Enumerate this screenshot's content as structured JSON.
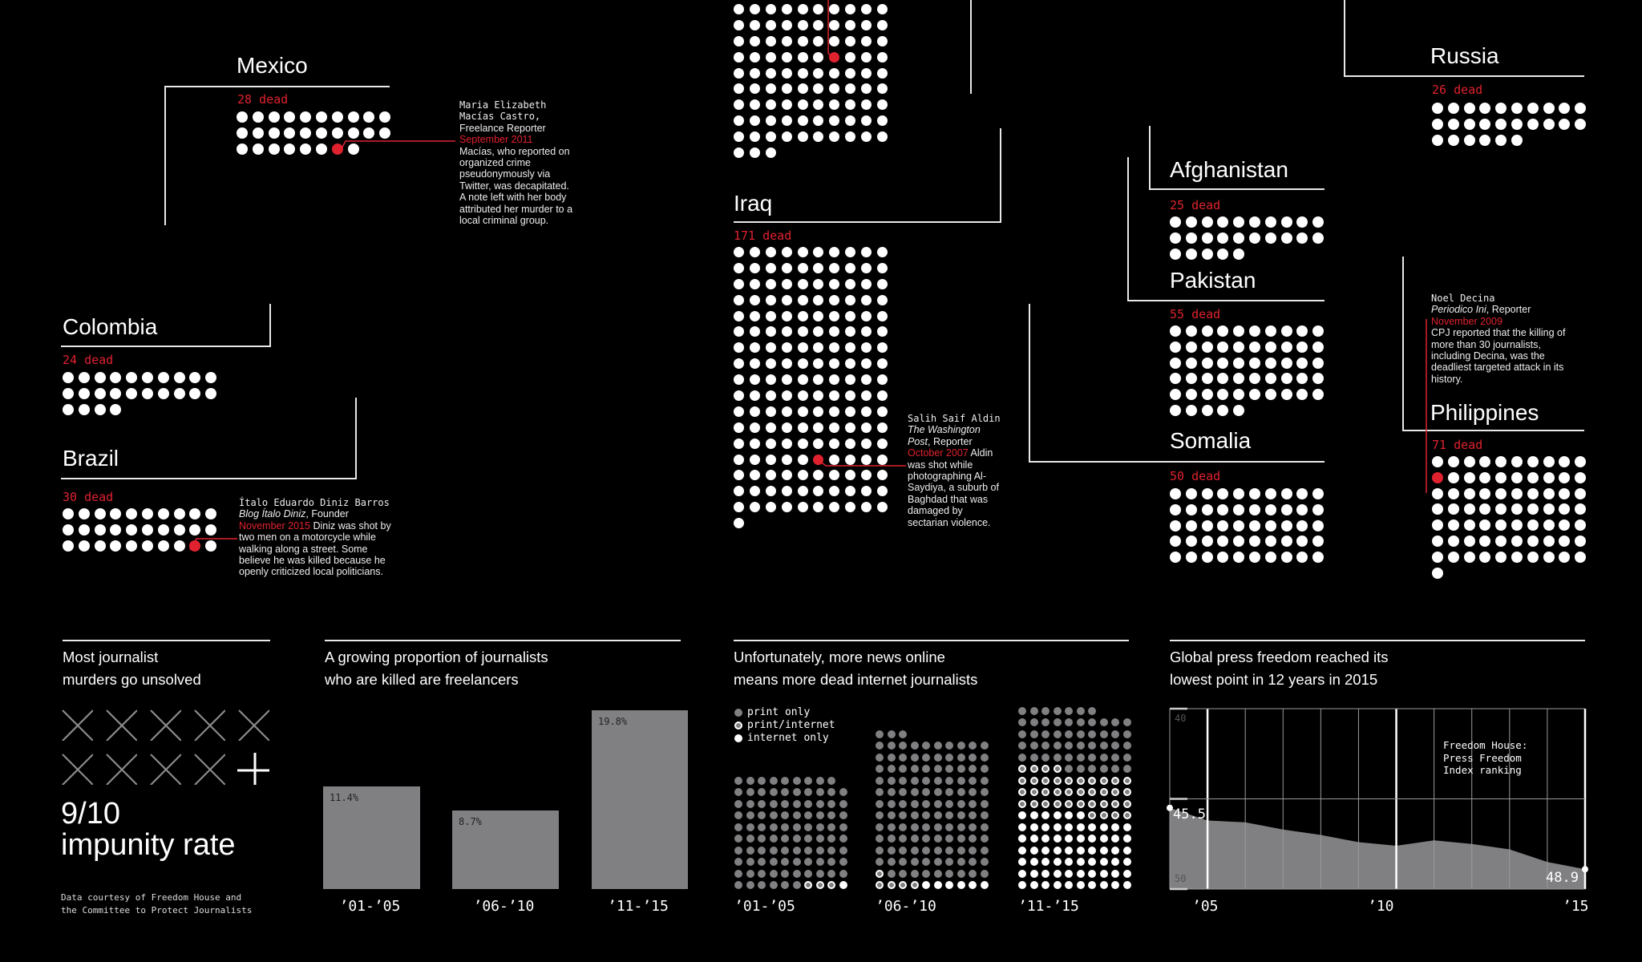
{
  "colors": {
    "accent_red": "#e0222f",
    "bar_gray": "#808083",
    "background": "#000000"
  },
  "countries": [
    {
      "id": "mexico",
      "name": "Mexico",
      "dead_label": "28 dead",
      "count": 28,
      "highlight_index": 26
    },
    {
      "id": "colombia",
      "name": "Colombia",
      "dead_label": "24 dead",
      "count": 24,
      "highlight_index": -1
    },
    {
      "id": "brazil",
      "name": "Brazil",
      "dead_label": "30 dead",
      "count": 30,
      "highlight_index": 28
    },
    {
      "id": "iraq",
      "name": "Iraq",
      "dead_label": "171 dead",
      "count": 171,
      "highlight_index": 135
    },
    {
      "id": "afghanistan",
      "name": "Afghanistan",
      "dead_label": "25 dead",
      "count": 25,
      "highlight_index": -1
    },
    {
      "id": "pakistan",
      "name": "Pakistan",
      "dead_label": "55 dead",
      "count": 55,
      "highlight_index": -1
    },
    {
      "id": "somalia",
      "name": "Somalia",
      "dead_label": "50 dead",
      "count": 50,
      "highlight_index": -1
    },
    {
      "id": "russia",
      "name": "Russia",
      "dead_label": "26 dead",
      "count": 26,
      "highlight_index": -1
    },
    {
      "id": "philippines",
      "name": "Philippines",
      "dead_label": "71 dead",
      "count": 71,
      "highlight_index": 10
    }
  ],
  "top_cluster": {
    "count": 93,
    "highlight_index": 36
  },
  "callouts": {
    "mexico": {
      "name": "Maria Elizabeth Macías Castro,",
      "role": "Freelance Reporter",
      "date": "September 2011",
      "text": "Macías, who reported on organized crime pseudonymously via Twitter, was decapitated. A note left with her body attributed her murder to a local criminal group."
    },
    "brazil": {
      "name": "Ítalo Eduardo Diniz Barros",
      "outlet": "Blog Ítalo Diniz",
      "role": "Founder",
      "date": "November 2015",
      "text": "Diniz was shot by two men on a motorcycle while walking along a street. Some believe he was killed because he openly criticized local politicians."
    },
    "iraq": {
      "name": "Salih Saif Aldin",
      "outlet": "The Washington Post",
      "role": "Reporter",
      "date": "October 2007",
      "text": "Aldin was shot while photographing Al-Saydiya, a suburb of Baghdad that was damaged by sectarian violence."
    },
    "philippines": {
      "name": "Noel Decina",
      "outlet": "Periodico Ini",
      "role": "Reporter",
      "date": "November 2009",
      "text": "CPJ reported that the killing of more than 30 journalists, including Decina, was the deadliest targeted attack in its history."
    }
  },
  "impunity": {
    "heading": [
      "Most journalist",
      "murders go unsolved"
    ],
    "unsolved": 9,
    "total": 10,
    "ratio": "9/10",
    "label": "impunity rate",
    "credit": [
      "Data courtesy of Freedom House and",
      "the Committee to Protect Journalists"
    ]
  },
  "chart_data": [
    {
      "type": "bar",
      "title": [
        "A growing proportion of journalists",
        "who are killed are freelancers"
      ],
      "categories": [
        "’01-’05",
        "’06-’10",
        "’11-’15"
      ],
      "values": [
        11.4,
        8.7,
        19.8
      ],
      "value_labels": [
        "11.4%",
        "8.7%",
        "19.8%"
      ],
      "xlabel": "",
      "ylabel": "",
      "ylim": [
        0,
        19.8
      ]
    },
    {
      "type": "waffle",
      "title": [
        "Unfortunately, more news online",
        "means more dead internet journalists"
      ],
      "legend": [
        {
          "code": "P",
          "label": "print only"
        },
        {
          "code": "R",
          "label": "print/internet"
        },
        {
          "code": "I",
          "label": "internet only"
        }
      ],
      "categories": [
        "’01-’05",
        "’06-’10",
        "’11-’15"
      ],
      "series": [
        {
          "name": "print only",
          "values": [
            95,
            122,
            53
          ]
        },
        {
          "name": "print/internet",
          "values": [
            3,
            5,
            38
          ]
        },
        {
          "name": "internet only",
          "values": [
            1,
            6,
            66
          ]
        }
      ],
      "rows": [
        [
          "PPPPPPPPP",
          "PPPPPPPPPP",
          "PPPPPPPPPP",
          "PPPPPPPPPP",
          "PPPPPPPPPP",
          "PPPPPPPPPP",
          "PPPPPPPPPP",
          "PPPPPPPPPP",
          "PPPPPPPPPP",
          "PPPPPPRRRI"
        ],
        [
          "PPP",
          "PPPPPPPPPP",
          "PPPPPPPPPP",
          "PPPPPPPPPP",
          "PPPPPPPPPP",
          "PPPPPPPPPP",
          "PPPPPPPPPP",
          "PPPPPPPPPP",
          "PPPPPPPPPP",
          "PPPPPPPPPP",
          "PPPPPPPPPP",
          "PPPPPPPPPP",
          "RPPPPPPPPP",
          "RRRRIIIIII"
        ],
        [
          "PPPPPPP",
          "PPPPPPPPPP",
          "PPPPPPPPPP",
          "PPPPPPPPPP",
          "PPPPPPPPPP",
          "RRRRPPPPPP",
          "RRRRRRRRRR",
          "RRRRRRRRRR",
          "RRRRRRRRRR",
          "IIIIIIRRRR",
          "IIIIIIIIII",
          "IIIIIIIIII",
          "IIIIIIIIII",
          "IIIIIIIIII",
          "IIIIIIIIII",
          "IIIIIIIIII"
        ]
      ]
    },
    {
      "type": "area",
      "title": [
        "Global press freedom reached its",
        "lowest point in 12 years in 2015"
      ],
      "annotation": [
        "Freedom House:",
        "Press Freedom",
        "Index ranking"
      ],
      "x": [
        2004,
        2005,
        2006,
        2007,
        2008,
        2009,
        2010,
        2011,
        2012,
        2013,
        2014,
        2015
      ],
      "values": [
        45.5,
        46.2,
        46.3,
        46.7,
        47.0,
        47.4,
        47.6,
        47.3,
        47.5,
        47.8,
        48.5,
        48.9
      ],
      "ylim": [
        40,
        50
      ],
      "y_inverted": true,
      "y_tick_labels": [
        "40",
        "50"
      ],
      "x_tick_labels": [
        "’05",
        "’10",
        "’15"
      ],
      "end_labels": [
        "45.5",
        "48.9"
      ],
      "grid": true
    }
  ]
}
